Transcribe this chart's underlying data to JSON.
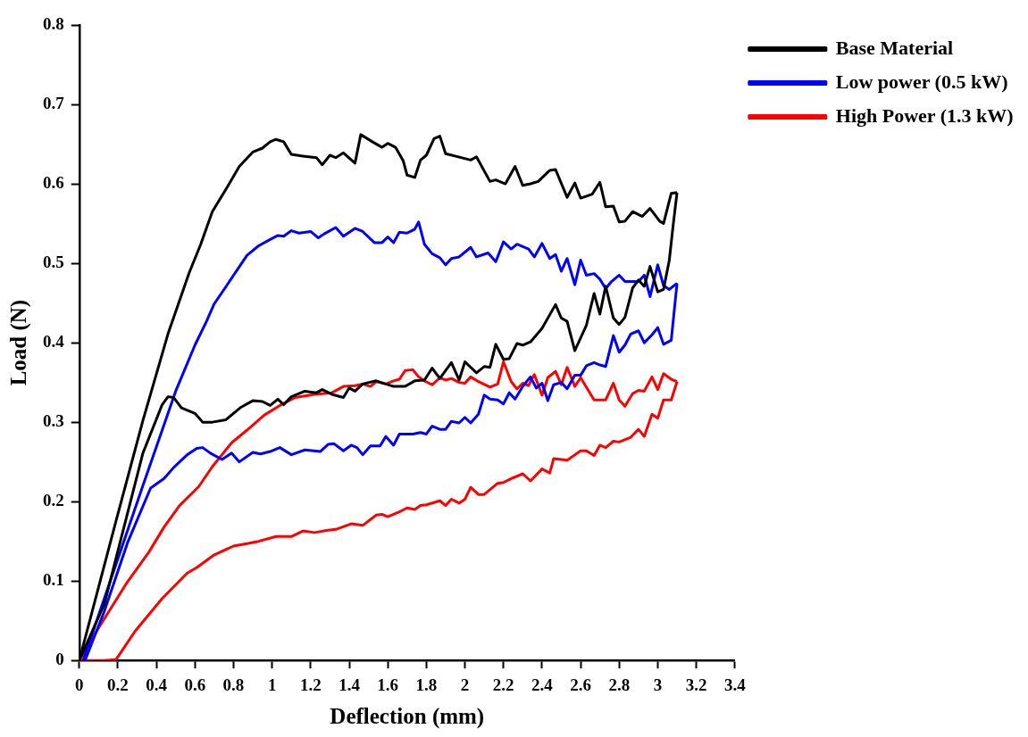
{
  "chart_data": {
    "type": "line",
    "xlabel": "Deflection (mm)",
    "ylabel": "Load (N)",
    "xlim": [
      0,
      3.4
    ],
    "ylim": [
      0,
      0.8
    ],
    "xticks": [
      0,
      0.2,
      0.4,
      0.6,
      0.8,
      1,
      1.2,
      1.4,
      1.6,
      1.8,
      2,
      2.2,
      2.4,
      2.6,
      2.8,
      3,
      3.2,
      3.4
    ],
    "yticks": [
      0,
      0.1,
      0.2,
      0.3,
      0.4,
      0.5,
      0.6,
      0.7,
      0.8
    ],
    "grid": false,
    "legend": "top right",
    "marker": "none",
    "series": [
      {
        "name": "Base Material",
        "color": "#000000",
        "x": [
          0,
          0.13,
          0.33,
          0.43,
          0.46,
          0.49,
          0.53,
          0.6,
          0.64,
          0.69,
          0.76,
          0.84,
          0.9,
          0.95,
          0.99,
          1.03,
          1.06,
          1.1,
          1.17,
          1.23,
          1.26,
          1.31,
          1.37,
          1.4,
          1.43,
          1.47,
          1.54,
          1.63,
          1.69,
          1.74,
          1.79,
          1.83,
          1.87,
          1.93,
          1.97,
          2.0,
          2.06,
          2.1,
          2.13,
          2.16,
          2.2,
          2.23,
          2.27,
          2.3,
          2.34,
          2.4,
          2.47,
          2.5,
          2.53,
          2.57,
          2.63,
          2.67,
          2.7,
          2.73,
          2.77,
          2.8,
          2.83,
          2.87,
          2.9,
          2.93,
          2.96,
          3.0,
          3.03,
          3.06,
          3.08,
          3.1
        ],
        "values": [
          0,
          0.071,
          0.261,
          0.322,
          0.332,
          0.331,
          0.318,
          0.311,
          0.3,
          0.3,
          0.303,
          0.319,
          0.327,
          0.326,
          0.321,
          0.329,
          0.322,
          0.332,
          0.339,
          0.337,
          0.341,
          0.335,
          0.331,
          0.343,
          0.339,
          0.348,
          0.352,
          0.345,
          0.345,
          0.352,
          0.353,
          0.368,
          0.355,
          0.375,
          0.353,
          0.376,
          0.362,
          0.37,
          0.369,
          0.398,
          0.379,
          0.38,
          0.399,
          0.397,
          0.401,
          0.418,
          0.448,
          0.431,
          0.427,
          0.39,
          0.422,
          0.462,
          0.436,
          0.471,
          0.431,
          0.423,
          0.432,
          0.469,
          0.479,
          0.471,
          0.496,
          0.464,
          0.467,
          0.504,
          0.548,
          0.589
        ]
      },
      {
        "color": "#000000",
        "x": [
          0,
          0.19,
          0.33,
          0.46,
          0.57,
          0.63,
          0.69,
          0.77,
          0.83,
          0.9,
          0.95,
          0.99,
          1.02,
          1.06,
          1.1,
          1.16,
          1.23,
          1.26,
          1.3,
          1.33,
          1.37,
          1.43,
          1.46,
          1.52,
          1.57,
          1.6,
          1.64,
          1.68,
          1.7,
          1.74,
          1.77,
          1.8,
          1.84,
          1.87,
          1.9,
          2.03,
          2.06,
          2.13,
          2.16,
          2.21,
          2.26,
          2.3,
          2.34,
          2.38,
          2.44,
          2.47,
          2.53,
          2.57,
          2.6,
          2.66,
          2.7,
          2.73,
          2.77,
          2.8,
          2.83,
          2.87,
          2.92,
          2.96,
          3.01,
          3.03,
          3.07,
          3.1
        ],
        "values": [
          0,
          0.175,
          0.302,
          0.411,
          0.488,
          0.524,
          0.565,
          0.597,
          0.622,
          0.64,
          0.645,
          0.653,
          0.656,
          0.653,
          0.637,
          0.635,
          0.633,
          0.624,
          0.636,
          0.633,
          0.639,
          0.626,
          0.662,
          0.653,
          0.646,
          0.651,
          0.646,
          0.629,
          0.611,
          0.608,
          0.63,
          0.636,
          0.657,
          0.66,
          0.638,
          0.63,
          0.634,
          0.603,
          0.605,
          0.6,
          0.622,
          0.598,
          0.6,
          0.603,
          0.617,
          0.618,
          0.583,
          0.601,
          0.582,
          0.587,
          0.602,
          0.571,
          0.572,
          0.552,
          0.553,
          0.565,
          0.559,
          0.569,
          0.553,
          0.55,
          0.588,
          0.589
        ]
      },
      {
        "name": "Low power (0.5 kW)",
        "color": "#0000ff",
        "x": [
          0.03,
          0.13,
          0.25,
          0.37,
          0.44,
          0.49,
          0.56,
          0.61,
          0.64,
          0.68,
          0.74,
          0.79,
          0.83,
          0.9,
          0.94,
          0.99,
          1.04,
          1.1,
          1.17,
          1.25,
          1.29,
          1.32,
          1.37,
          1.41,
          1.44,
          1.47,
          1.51,
          1.56,
          1.59,
          1.63,
          1.66,
          1.73,
          1.77,
          1.8,
          1.83,
          1.87,
          1.9,
          1.93,
          1.97,
          2.0,
          2.03,
          2.07,
          2.1,
          2.13,
          2.17,
          2.2,
          2.23,
          2.26,
          2.3,
          2.34,
          2.37,
          2.4,
          2.43,
          2.46,
          2.5,
          2.53,
          2.57,
          2.6,
          2.63,
          2.67,
          2.7,
          2.73,
          2.77,
          2.8,
          2.83,
          2.86,
          2.9,
          2.93,
          2.97,
          3.0,
          3.03,
          3.07,
          3.1
        ],
        "values": [
          0,
          0.062,
          0.148,
          0.217,
          0.229,
          0.243,
          0.259,
          0.267,
          0.268,
          0.261,
          0.253,
          0.261,
          0.25,
          0.262,
          0.26,
          0.263,
          0.268,
          0.259,
          0.265,
          0.263,
          0.272,
          0.273,
          0.264,
          0.271,
          0.268,
          0.259,
          0.27,
          0.27,
          0.282,
          0.271,
          0.285,
          0.285,
          0.287,
          0.285,
          0.295,
          0.291,
          0.291,
          0.301,
          0.299,
          0.306,
          0.299,
          0.31,
          0.334,
          0.329,
          0.328,
          0.323,
          0.337,
          0.329,
          0.345,
          0.357,
          0.343,
          0.349,
          0.327,
          0.347,
          0.35,
          0.342,
          0.359,
          0.359,
          0.371,
          0.375,
          0.372,
          0.37,
          0.409,
          0.388,
          0.397,
          0.411,
          0.415,
          0.4,
          0.41,
          0.419,
          0.398,
          0.403,
          0.475
        ]
      },
      {
        "color": "#0000ff",
        "x": [
          0.02,
          0.33,
          0.5,
          0.6,
          0.66,
          0.7,
          0.77,
          0.87,
          0.93,
          0.99,
          1.03,
          1.06,
          1.1,
          1.14,
          1.2,
          1.24,
          1.27,
          1.33,
          1.37,
          1.43,
          1.47,
          1.53,
          1.57,
          1.6,
          1.63,
          1.66,
          1.7,
          1.74,
          1.76,
          1.79,
          1.83,
          1.87,
          1.9,
          1.93,
          1.97,
          2.03,
          2.06,
          2.12,
          2.16,
          2.2,
          2.24,
          2.27,
          2.33,
          2.36,
          2.4,
          2.44,
          2.47,
          2.5,
          2.53,
          2.57,
          2.6,
          2.63,
          2.67,
          2.7,
          2.73,
          2.76,
          2.8,
          2.83,
          2.9,
          2.93,
          2.96,
          3.0,
          3.03,
          3.06,
          3.1
        ],
        "values": [
          0,
          0.22,
          0.339,
          0.397,
          0.427,
          0.449,
          0.474,
          0.51,
          0.522,
          0.53,
          0.535,
          0.534,
          0.541,
          0.538,
          0.54,
          0.532,
          0.537,
          0.545,
          0.534,
          0.544,
          0.54,
          0.526,
          0.526,
          0.533,
          0.526,
          0.539,
          0.538,
          0.543,
          0.552,
          0.524,
          0.512,
          0.507,
          0.498,
          0.506,
          0.508,
          0.52,
          0.508,
          0.513,
          0.502,
          0.527,
          0.518,
          0.524,
          0.518,
          0.508,
          0.525,
          0.506,
          0.511,
          0.49,
          0.506,
          0.473,
          0.504,
          0.485,
          0.487,
          0.48,
          0.468,
          0.477,
          0.485,
          0.477,
          0.477,
          0.485,
          0.458,
          0.498,
          0.472,
          0.467,
          0.475
        ]
      },
      {
        "name": "High Power (1.3 kW)",
        "color": "#ff0000",
        "x": [
          0,
          0.05,
          0.13,
          0.19,
          0.29,
          0.43,
          0.56,
          0.61,
          0.7,
          0.8,
          0.87,
          0.93,
          1.02,
          1.1,
          1.16,
          1.22,
          1.29,
          1.33,
          1.41,
          1.47,
          1.54,
          1.57,
          1.6,
          1.66,
          1.7,
          1.74,
          1.77,
          1.8,
          1.87,
          1.9,
          1.93,
          1.97,
          2.0,
          2.03,
          2.07,
          2.1,
          2.17,
          2.2,
          2.24,
          2.3,
          2.34,
          2.4,
          2.44,
          2.46,
          2.53,
          2.6,
          2.63,
          2.67,
          2.7,
          2.73,
          2.77,
          2.8,
          2.86,
          2.9,
          2.93,
          2.97,
          3.0,
          3.03,
          3.07,
          3.1
        ],
        "values": [
          0,
          0,
          0,
          0.001,
          0.037,
          0.078,
          0.11,
          0.117,
          0.133,
          0.144,
          0.147,
          0.15,
          0.156,
          0.156,
          0.163,
          0.161,
          0.164,
          0.165,
          0.172,
          0.17,
          0.183,
          0.184,
          0.181,
          0.187,
          0.192,
          0.19,
          0.195,
          0.196,
          0.201,
          0.195,
          0.203,
          0.198,
          0.203,
          0.218,
          0.209,
          0.209,
          0.223,
          0.224,
          0.229,
          0.235,
          0.226,
          0.241,
          0.236,
          0.254,
          0.252,
          0.264,
          0.264,
          0.258,
          0.271,
          0.268,
          0.276,
          0.275,
          0.281,
          0.291,
          0.282,
          0.31,
          0.305,
          0.328,
          0.328,
          0.351
        ]
      },
      {
        "color": "#ff0000",
        "x": [
          0,
          0.09,
          0.25,
          0.36,
          0.44,
          0.52,
          0.62,
          0.69,
          0.79,
          0.87,
          0.96,
          1.04,
          1.12,
          1.22,
          1.31,
          1.37,
          1.43,
          1.47,
          1.51,
          1.54,
          1.59,
          1.63,
          1.66,
          1.69,
          1.73,
          1.76,
          1.79,
          1.83,
          1.87,
          1.9,
          1.93,
          1.97,
          2.0,
          2.03,
          2.07,
          2.13,
          2.17,
          2.2,
          2.24,
          2.27,
          2.3,
          2.33,
          2.36,
          2.4,
          2.43,
          2.47,
          2.5,
          2.53,
          2.57,
          2.6,
          2.67,
          2.73,
          2.77,
          2.8,
          2.83,
          2.87,
          2.9,
          2.93,
          2.97,
          3.0,
          3.03,
          3.07,
          3.1
        ],
        "values": [
          0,
          0.037,
          0.099,
          0.136,
          0.168,
          0.195,
          0.219,
          0.244,
          0.274,
          0.29,
          0.309,
          0.321,
          0.331,
          0.335,
          0.337,
          0.345,
          0.346,
          0.348,
          0.345,
          0.351,
          0.348,
          0.352,
          0.354,
          0.365,
          0.366,
          0.357,
          0.352,
          0.347,
          0.356,
          0.353,
          0.355,
          0.35,
          0.349,
          0.357,
          0.351,
          0.344,
          0.348,
          0.376,
          0.351,
          0.342,
          0.349,
          0.346,
          0.36,
          0.334,
          0.356,
          0.364,
          0.347,
          0.369,
          0.345,
          0.356,
          0.328,
          0.328,
          0.349,
          0.328,
          0.32,
          0.336,
          0.34,
          0.339,
          0.357,
          0.341,
          0.361,
          0.354,
          0.351
        ]
      }
    ]
  }
}
